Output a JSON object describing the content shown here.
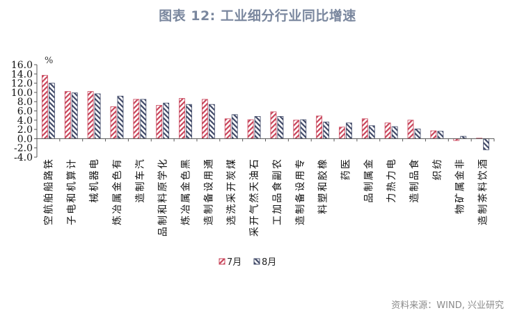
{
  "title": "图表 12: 工业细分行业同比增速",
  "source": "资料来源：WIND, 兴业研究",
  "colors": {
    "jul": "#c8445a",
    "aug": "#3e4766",
    "title": "#7a879e",
    "axis": "#555555"
  },
  "chart_data": {
    "type": "bar",
    "title": "图表 12: 工业细分行业同比增速",
    "xlabel": "",
    "ylabel": "%",
    "ylim": [
      -4.0,
      16.0
    ],
    "yticks": [
      "16.0",
      "14.0",
      "12.0",
      "10.0",
      "8.0",
      "6.0",
      "4.0",
      "2.0",
      "0.0",
      "-2.0",
      "-4.0"
    ],
    "grid": false,
    "legend_position": "bottom",
    "categories": [
      "铁路船舶航空",
      "计算机和电子",
      "电器机械",
      "有色金属冶炼",
      "汽车制造",
      "化学原料和制品",
      "黑色金属冶炼",
      "通用设备制造",
      "煤炭开采洗选",
      "石油天然气开采",
      "农副食品加工",
      "专用设备制造",
      "橡胶和塑料",
      "医药",
      "金属制品",
      "电力热力",
      "食品制造",
      "纺织",
      "非金属矿物",
      "酒饮料茶制造"
    ],
    "series": [
      {
        "name": "7月",
        "values": [
          13.7,
          10.2,
          10.2,
          6.9,
          8.5,
          7.2,
          8.7,
          8.5,
          4.3,
          4.1,
          5.8,
          4.0,
          4.9,
          2.5,
          4.3,
          3.4,
          4.0,
          1.7,
          -0.4,
          0.1
        ]
      },
      {
        "name": "8月",
        "values": [
          12.0,
          9.9,
          9.7,
          9.2,
          8.5,
          7.7,
          7.4,
          7.4,
          5.2,
          4.8,
          4.8,
          4.1,
          3.6,
          3.4,
          2.8,
          2.6,
          2.1,
          1.6,
          0.5,
          -2.4
        ]
      }
    ]
  }
}
